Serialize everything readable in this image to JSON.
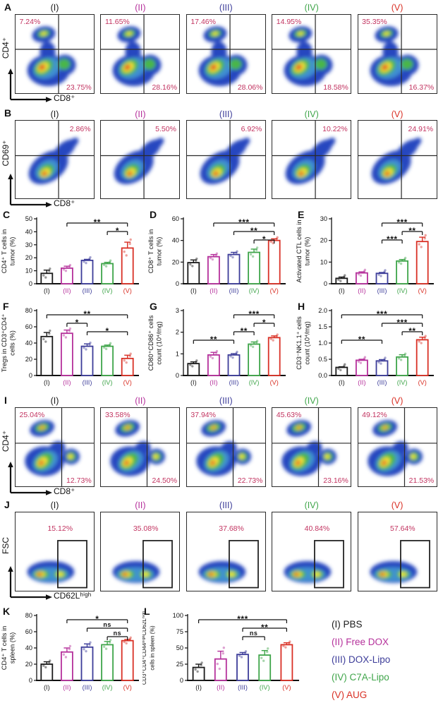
{
  "figure": {
    "background": "#ffffff",
    "percent_color": "#c23360",
    "groups": [
      {
        "numeral": "(I)",
        "name": "PBS",
        "color": "#1a1a1a"
      },
      {
        "numeral": "(II)",
        "name": "Free DOX",
        "color": "#b5309b"
      },
      {
        "numeral": "(III)",
        "name": "DOX-Lipo",
        "color": "#3c3c99"
      },
      {
        "numeral": "(IV)",
        "name": "C7A-Lipo",
        "color": "#3fa54a"
      },
      {
        "numeral": "(V)",
        "name": "AUG",
        "color": "#d93025"
      }
    ]
  },
  "flow_rows": [
    {
      "panel": "A",
      "ylabel": "CD4⁺",
      "xlabel": "CD8⁺",
      "shape": "A",
      "cross": {
        "x": 55,
        "y": 44
      },
      "plots": [
        {
          "title": "(I)",
          "percents": {
            "tl": "7.24%",
            "br": "23.75%"
          }
        },
        {
          "title": "(II)",
          "percents": {
            "tl": "11.65%",
            "br": "28.16%"
          }
        },
        {
          "title": "(III)",
          "percents": {
            "tl": "17.46%",
            "br": "28.06%"
          }
        },
        {
          "title": "(IV)",
          "percents": {
            "tl": "14.95%",
            "br": "18.58%"
          }
        },
        {
          "title": "(V)",
          "percents": {
            "tl": "35.35%",
            "br": "16.37%"
          }
        }
      ]
    },
    {
      "panel": "B",
      "ylabel": "CD69⁺",
      "xlabel": "CD8⁺",
      "shape": "B",
      "cross": {
        "x": 55,
        "y": 45
      },
      "plots": [
        {
          "title": "(I)",
          "percents": {
            "tr": "2.86%"
          }
        },
        {
          "title": "(II)",
          "percents": {
            "tr": "5.50%"
          }
        },
        {
          "title": "(III)",
          "percents": {
            "tr": "6.92%"
          }
        },
        {
          "title": "(IV)",
          "percents": {
            "tr": "10.22%"
          }
        },
        {
          "title": "(V)",
          "percents": {
            "tr": "24.91%"
          }
        }
      ]
    },
    {
      "panel": "I",
      "ylabel": "CD4⁺",
      "xlabel": "CD8⁺",
      "shape": "I",
      "cross": {
        "x": 59,
        "y": 45
      },
      "plots": [
        {
          "title": "(I)",
          "percents": {
            "tl": "25.04%",
            "br": "12.73%"
          }
        },
        {
          "title": "(II)",
          "percents": {
            "tl": "33.58%",
            "br": "24.50%"
          }
        },
        {
          "title": "(III)",
          "percents": {
            "tl": "37.94%",
            "br": "22.73%"
          }
        },
        {
          "title": "(IV)",
          "percents": {
            "tl": "45.63%",
            "br": "23.16%"
          }
        },
        {
          "title": "(V)",
          "percents": {
            "tl": "49.12%",
            "br": "21.53%"
          }
        }
      ]
    },
    {
      "panel": "J",
      "ylabel": "FSC",
      "xlabel": "CD62Lʰⁱᵍʰ",
      "shape": "J",
      "gate": {
        "x": 54,
        "y": 36,
        "w": 37,
        "h": 60
      },
      "plots": [
        {
          "title": "(I)",
          "percents": {
            "tc": "15.12%"
          }
        },
        {
          "title": "(II)",
          "percents": {
            "tc": "35.08%"
          }
        },
        {
          "title": "(III)",
          "percents": {
            "tc": "37.68%"
          }
        },
        {
          "title": "(IV)",
          "percents": {
            "tc": "40.84%"
          }
        },
        {
          "title": "(V)",
          "percents": {
            "tc": "57.64%"
          }
        }
      ]
    }
  ],
  "chart_data": [
    {
      "panel": "C",
      "type": "bar",
      "categories": [
        "(I)",
        "(II)",
        "(III)",
        "(IV)",
        "(V)"
      ],
      "values": [
        8,
        12,
        18,
        15.5,
        27.5
      ],
      "errors": [
        2.5,
        1.5,
        0.8,
        1,
        4.5
      ],
      "ylabel": [
        "CD4⁺ T cells in",
        "tumor (%)"
      ],
      "ylim": [
        0,
        50
      ],
      "yticks": [
        "0",
        "10",
        "20",
        "30",
        "40",
        "50"
      ],
      "significance": [
        {
          "from": 1,
          "to": 4,
          "label": "**"
        },
        {
          "from": 3,
          "to": 4,
          "label": "*"
        }
      ]
    },
    {
      "panel": "D",
      "type": "bar",
      "categories": [
        "(I)",
        "(II)",
        "(III)",
        "(IV)",
        "(V)"
      ],
      "values": [
        19.5,
        25,
        27,
        29,
        40
      ],
      "errors": [
        2.5,
        2,
        2,
        3,
        1.5
      ],
      "ylabel": [
        "CD8⁺ T cells in",
        "tumor (%)"
      ],
      "ylim": [
        0,
        60
      ],
      "yticks": [
        "0",
        "20",
        "40",
        "60"
      ],
      "significance": [
        {
          "from": 1,
          "to": 4,
          "label": "***"
        },
        {
          "from": 2,
          "to": 4,
          "label": "**"
        },
        {
          "from": 3,
          "to": 4,
          "label": "*"
        }
      ]
    },
    {
      "panel": "E",
      "type": "bar",
      "categories": [
        "(I)",
        "(II)",
        "(III)",
        "(IV)",
        "(V)"
      ],
      "values": [
        2.5,
        5,
        4.8,
        10.5,
        19.5
      ],
      "errors": [
        0.6,
        0.5,
        0.4,
        0.7,
        2
      ],
      "ylabel": [
        "Activated CTL cells in",
        "tumor (%)"
      ],
      "ylim": [
        0,
        30
      ],
      "yticks": [
        "0",
        "10",
        "20",
        "30"
      ],
      "significance": [
        {
          "from": 2,
          "to": 4,
          "label": "***"
        },
        {
          "from": 3,
          "to": 4,
          "label": "**"
        },
        {
          "from": 2,
          "to": 3,
          "label": "***"
        }
      ]
    },
    {
      "panel": "F",
      "type": "bar",
      "categories": [
        "(I)",
        "(II)",
        "(III)",
        "(IV)",
        "(V)"
      ],
      "values": [
        48,
        52,
        36,
        36,
        21
      ],
      "errors": [
        5,
        4,
        3,
        1.5,
        4
      ],
      "ylabel": [
        "Tregs in CD3⁺CD4⁺",
        "cells (%)"
      ],
      "ylim": [
        0,
        80
      ],
      "yticks": [
        "0",
        "20",
        "40",
        "60",
        "80"
      ],
      "significance": [
        {
          "from": 0,
          "to": 4,
          "label": "**"
        },
        {
          "from": 1,
          "to": 2,
          "label": "*"
        },
        {
          "from": 2,
          "to": 4,
          "label": "*"
        }
      ]
    },
    {
      "panel": "G",
      "type": "bar",
      "categories": [
        "(I)",
        "(II)",
        "(III)",
        "(IV)",
        "(V)"
      ],
      "values": [
        0.55,
        0.95,
        0.95,
        1.45,
        1.75
      ],
      "errors": [
        0.08,
        0.12,
        0.06,
        0.1,
        0.08
      ],
      "ylabel": [
        "CD80⁺CD86⁺ cells",
        "count (10⁴/mg)"
      ],
      "ylim": [
        0,
        3
      ],
      "yticks": [
        "0",
        "1",
        "2",
        "3"
      ],
      "significance": [
        {
          "from": 2,
          "to": 4,
          "label": "***"
        },
        {
          "from": 3,
          "to": 4,
          "label": "*"
        },
        {
          "from": 2,
          "to": 3,
          "label": "**"
        },
        {
          "from": 0,
          "to": 2,
          "label": "**"
        }
      ]
    },
    {
      "panel": "H",
      "type": "bar",
      "categories": [
        "(I)",
        "(II)",
        "(III)",
        "(IV)",
        "(V)"
      ],
      "values": [
        0.25,
        0.47,
        0.45,
        0.57,
        1.1
      ],
      "errors": [
        0.02,
        0.03,
        0.04,
        0.07,
        0.08
      ],
      "ylabel": [
        "CD3⁻NK1.1⁺ cells",
        "count (10⁴/mg)"
      ],
      "ylim": [
        0,
        2
      ],
      "yticks": [
        "0.0",
        "0.5",
        "1.0",
        "1.5",
        "2.0"
      ],
      "significance": [
        {
          "from": 0,
          "to": 4,
          "label": "***"
        },
        {
          "from": 2,
          "to": 4,
          "label": "***"
        },
        {
          "from": 3,
          "to": 4,
          "label": "**"
        },
        {
          "from": 0,
          "to": 2,
          "label": "**"
        }
      ]
    },
    {
      "panel": "K",
      "type": "bar",
      "categories": [
        "(I)",
        "(II)",
        "(III)",
        "(IV)",
        "(V)"
      ],
      "values": [
        20,
        35,
        41,
        44,
        49
      ],
      "errors": [
        3,
        5,
        4,
        4,
        1.5
      ],
      "ylabel": [
        "CD4⁺ T cells in",
        "spleen (%)"
      ],
      "ylim": [
        0,
        80
      ],
      "yticks": [
        "0",
        "20",
        "40",
        "60",
        "80"
      ],
      "significance": [
        {
          "from": 1,
          "to": 4,
          "label": "*"
        },
        {
          "from": 2,
          "to": 4,
          "label": "ns"
        },
        {
          "from": 3,
          "to": 4,
          "label": "ns"
        }
      ]
    },
    {
      "panel": "L",
      "type": "bar",
      "categories": [
        "(I)",
        "(II)",
        "(III)",
        "(IV)",
        "(V)"
      ],
      "values": [
        20,
        33,
        40,
        39,
        55
      ],
      "errors": [
        5,
        12,
        3,
        7,
        3
      ],
      "ylabel": [
        "CD3⁺CD4⁺CD44ʰⁱᵍʰCD62Lʰⁱᵍʰ",
        "cells in spleen (%)"
      ],
      "ylim": [
        0,
        100
      ],
      "yticks": [
        "0",
        "25",
        "50",
        "75",
        "100"
      ],
      "significance": [
        {
          "from": 0,
          "to": 4,
          "label": "***"
        },
        {
          "from": 2,
          "to": 4,
          "label": "**"
        },
        {
          "from": 2,
          "to": 3,
          "label": "ns"
        }
      ]
    }
  ]
}
